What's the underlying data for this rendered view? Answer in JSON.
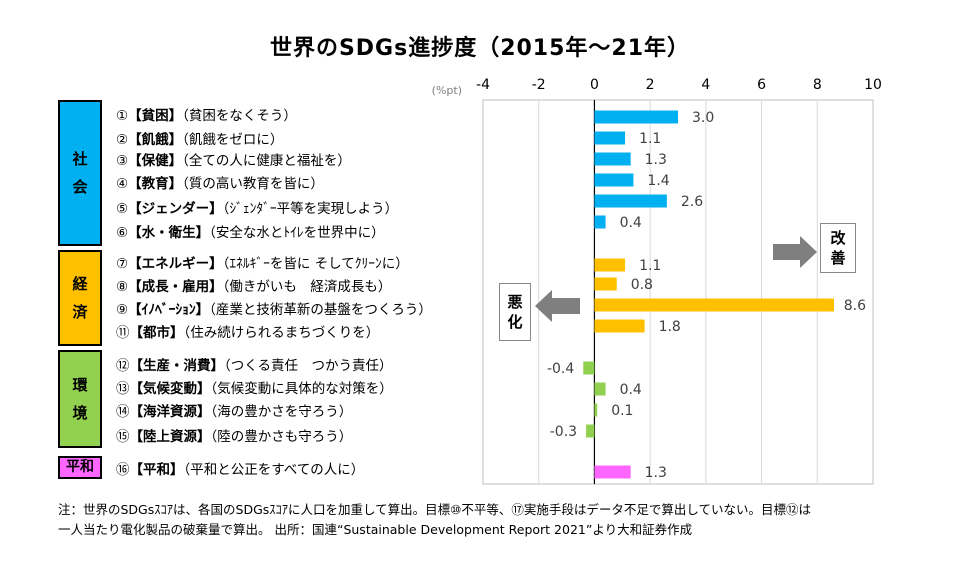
{
  "title": "世界のSDGs進捗度（2015年～21年）",
  "unit_label": "(%pt)",
  "categories": [
    {
      "id": "social",
      "lines": [
        "社",
        "会"
      ]
    },
    {
      "id": "econ",
      "lines": [
        "経",
        "済"
      ]
    },
    {
      "id": "env",
      "lines": [
        "環",
        "境"
      ]
    },
    {
      "id": "peace",
      "lines": [
        "平和"
      ]
    }
  ],
  "goals": [
    {
      "num": "①",
      "name": "【貧困】",
      "desc": "（貧困をなくそう）"
    },
    {
      "num": "②",
      "name": "【飢餓】",
      "desc": "（飢餓をゼロに）"
    },
    {
      "num": "③",
      "name": "【保健】",
      "desc": "（全ての人に健康と福祉を）"
    },
    {
      "num": "④",
      "name": "【教育】",
      "desc": "（質の高い教育を皆に）"
    },
    {
      "num": "⑤",
      "name": "【ジェンダー】",
      "desc": "（ｼﾞｪﾝﾀﾞｰ平等を実現しよう）"
    },
    {
      "num": "⑥",
      "name": "【水・衛生】",
      "desc": "（安全な水とﾄｲﾚを世界中に）"
    },
    {
      "num": "⑦",
      "name": "【エネルギー】",
      "desc": "（ｴﾈﾙｷﾞｰを皆に そしてｸﾘｰﾝに）"
    },
    {
      "num": "⑧",
      "name": "【成長・雇用】",
      "desc": "（働きがいも　経済成長も）"
    },
    {
      "num": "⑨",
      "name": "【ｲﾉﾍﾞｰｼｮﾝ】",
      "desc": "（産業と技術革新の基盤をつくろう）"
    },
    {
      "num": "⑪",
      "name": "【都市】",
      "desc": "（住み続けられるまちづくりを）"
    },
    {
      "num": "⑫",
      "name": "【生産・消費】",
      "desc": "（つくる責任　つかう責任）"
    },
    {
      "num": "⑬",
      "name": "【気候変動】",
      "desc": "（気候変動に具体的な対策を）"
    },
    {
      "num": "⑭",
      "name": "【海洋資源】",
      "desc": "（海の豊かさを守ろう）"
    },
    {
      "num": "⑮",
      "name": "【陸上資源】",
      "desc": "（陸の豊かさも守ろう）"
    },
    {
      "num": "⑯",
      "name": "【平和】",
      "desc": "（平和と公正をすべての人に）"
    }
  ],
  "badges": {
    "improve": [
      "改",
      "善"
    ],
    "worse": [
      "悪",
      "化"
    ]
  },
  "footnote": {
    "line1": "注：世界のSDGsｽｺｱは、各国のSDGsｽｺｱに人口を加重して算出。目標⑩不平等、⑰実施手段はデータ不足で算出していない。目標⑫は",
    "line2": "一人当たり電化製品の破棄量で算出。 出所：国連“Sustainable Development Report 2021”より大和証券作成"
  },
  "colors": {
    "social": "#00b0f0",
    "econ": "#ffc000",
    "env": "#92d050",
    "peace": "#ff66ff",
    "arrow": "#7f7f7f"
  },
  "chart_data": {
    "type": "bar",
    "orientation": "horizontal",
    "title": "世界のSDGs進捗度（2015年～21年）",
    "xlabel": "(%pt)",
    "xlim": [
      -4,
      10
    ],
    "xticks": [
      "-4",
      "-2",
      "0",
      "2",
      "4",
      "6",
      "8",
      "10"
    ],
    "categories": [
      "①",
      "②",
      "③",
      "④",
      "⑤",
      "⑥",
      "⑦",
      "⑧",
      "⑨",
      "⑪",
      "⑫",
      "⑬",
      "⑭",
      "⑮",
      "⑯"
    ],
    "values": [
      3.0,
      1.1,
      1.3,
      1.4,
      2.6,
      0.4,
      1.1,
      0.8,
      8.6,
      1.8,
      -0.4,
      0.4,
      0.1,
      -0.3,
      1.3
    ],
    "labels": [
      "3.0",
      "1.1",
      "1.3",
      "1.4",
      "2.6",
      "0.4",
      "1.1",
      "0.8",
      "8.6",
      "1.8",
      "-0.4",
      "0.4",
      "0.1",
      "-0.3",
      "1.3"
    ],
    "groups": [
      "social",
      "social",
      "social",
      "social",
      "social",
      "social",
      "econ",
      "econ",
      "econ",
      "econ",
      "env",
      "env",
      "env",
      "env",
      "peace"
    ],
    "grid": true
  }
}
